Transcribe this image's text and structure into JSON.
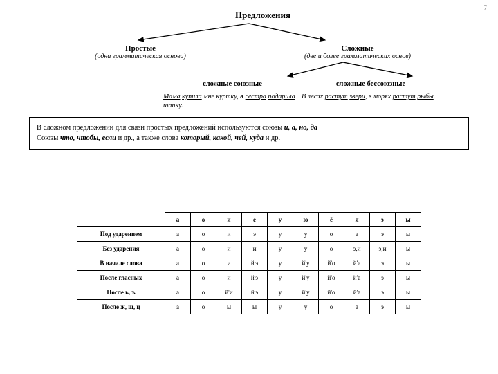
{
  "page_number": "7",
  "title": "Предложения",
  "left": {
    "heading": "Простые",
    "sub": "(одна грамматическая основа)"
  },
  "right": {
    "heading": "Сложные",
    "sub": "(две и более грамматических основ)"
  },
  "sub_left": {
    "title": "сложные союзные"
  },
  "sub_right": {
    "title": "сложные бессоюзные"
  },
  "note": {
    "l1a": "В сложном предложении для связи простых предложений используются союзы ",
    "l1b": "и, а, но, да",
    "l2a": "Союзы ",
    "l2b": "что, чтобы, если",
    "l2c": " и др., а также слова ",
    "l2d": "который, какой, чей, куда",
    "l2e": " и др."
  },
  "table": {
    "cols": [
      "а",
      "о",
      "и",
      "е",
      "у",
      "ю",
      "ё",
      "я",
      "э",
      "ы"
    ],
    "rows": [
      {
        "h": "Под ударением",
        "c": [
          "а",
          "о",
          "и",
          "э",
          "у",
          "у",
          "о",
          "а",
          "э",
          "ы"
        ]
      },
      {
        "h": "Без ударения",
        "c": [
          "а",
          "о",
          "и",
          "и",
          "у",
          "у",
          "о",
          "э,и",
          "э,и",
          "ы"
        ]
      },
      {
        "h": "В начале слова",
        "c": [
          "а",
          "о",
          "и",
          "й'э",
          "у",
          "й'у",
          "й'о",
          "й'а",
          "э",
          "ы"
        ]
      },
      {
        "h": "После гласных",
        "c": [
          "а",
          "о",
          "и",
          "й'э",
          "у",
          "й'у",
          "й'о",
          "й'а",
          "э",
          "ы"
        ]
      },
      {
        "h": "После ь, ъ",
        "c": [
          "а",
          "о",
          "й'и",
          "й'э",
          "у",
          "й'у",
          "й'о",
          "й'а",
          "э",
          "ы"
        ]
      },
      {
        "h": "После ж, ш, ц",
        "c": [
          "а",
          "о",
          "ы",
          "ы",
          "у",
          "у",
          "о",
          "а",
          "э",
          "ы"
        ]
      }
    ]
  },
  "colors": {
    "text": "#000000",
    "bg": "#ffffff",
    "page_num": "#666666"
  }
}
